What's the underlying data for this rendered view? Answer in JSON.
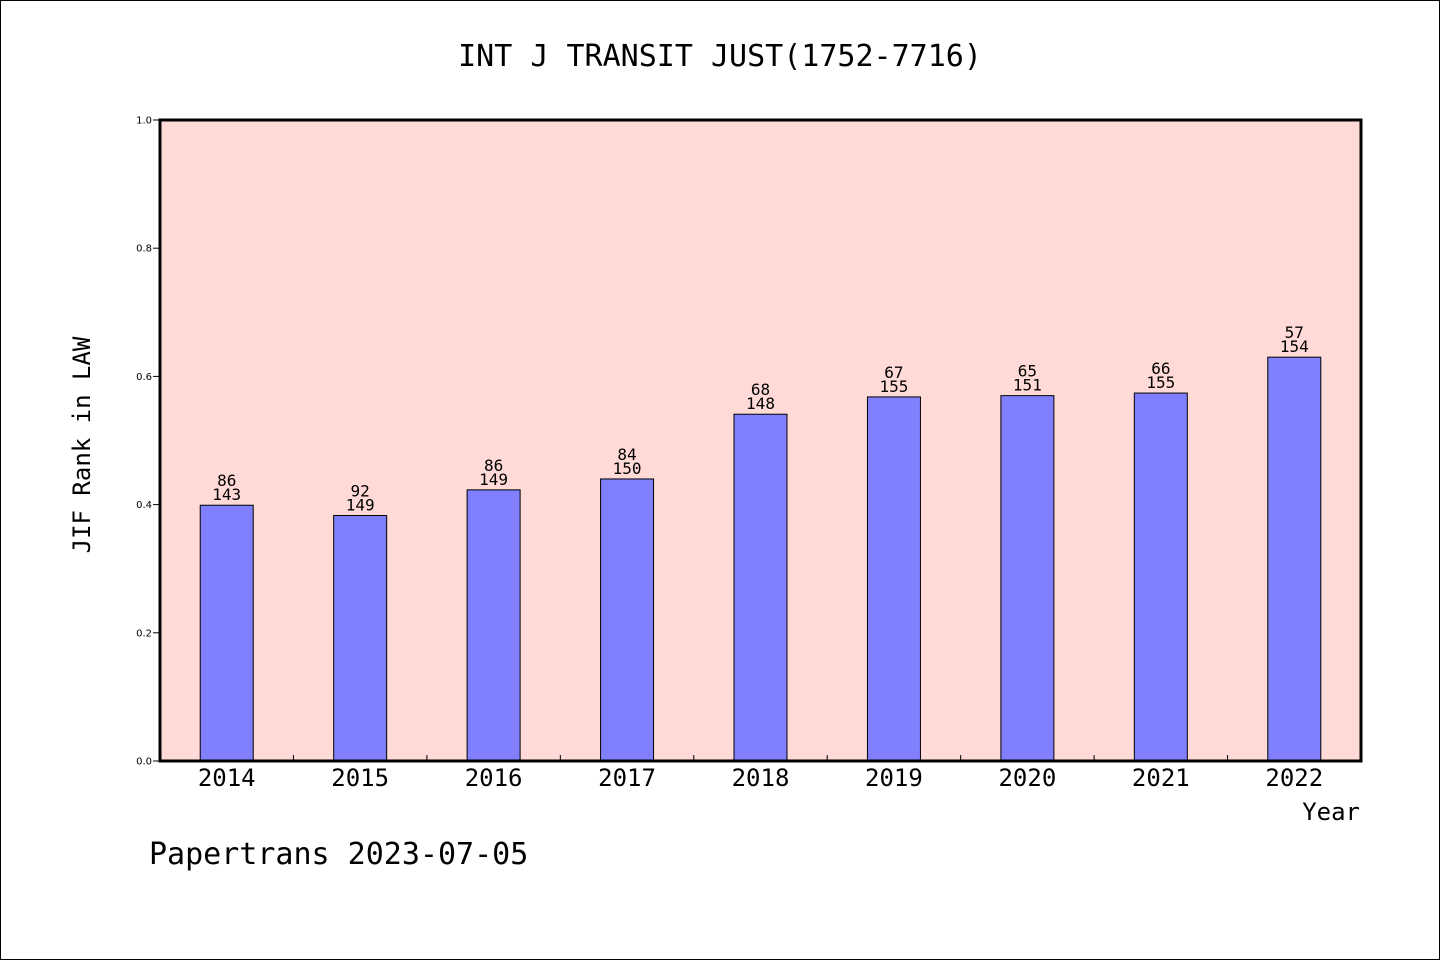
{
  "chart_data": {
    "type": "bar",
    "title": "INT J TRANSIT JUST(1752-7716)",
    "xlabel": "Year",
    "ylabel": "JIF Rank in LAW",
    "ylim": [
      0,
      1.0
    ],
    "yticks": [
      "0.0",
      "0.2",
      "0.4",
      "0.6",
      "0.8",
      "1.0"
    ],
    "categories": [
      "2014",
      "2015",
      "2016",
      "2017",
      "2018",
      "2019",
      "2020",
      "2021",
      "2022"
    ],
    "values": [
      0.399,
      0.383,
      0.423,
      0.44,
      0.541,
      0.568,
      0.57,
      0.574,
      0.63
    ],
    "labels_top": [
      "86",
      "92",
      "86",
      "84",
      "68",
      "67",
      "65",
      "66",
      "57"
    ],
    "labels_bottom": [
      "143",
      "149",
      "149",
      "150",
      "148",
      "155",
      "151",
      "155",
      "154"
    ],
    "colors": {
      "plot_bg": "#ffdad7",
      "bar": "#8080ff"
    }
  },
  "footer": {
    "text": "Papertrans 2023-07-05"
  }
}
